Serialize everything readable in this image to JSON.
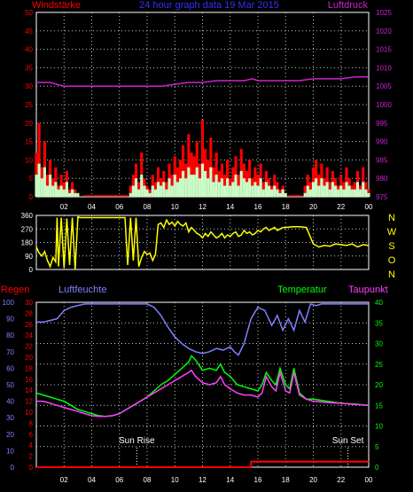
{
  "header": {
    "left_title": "Windstärke",
    "center_title": "24 hour graph data  19 Mar 2015",
    "right_title": "Luftdruck"
  },
  "bottom_header": {
    "rain_label": "Regen",
    "humidity_label": "Luftfeuchte",
    "temperature_label": "Temperatur",
    "dewpoint_label": "Taupunkt"
  },
  "compass_labels": [
    "N",
    "W",
    "S",
    "O",
    "N"
  ],
  "sun_rise_label": "Sun Rise",
  "sun_set_label": "Sun Set",
  "colors": {
    "background": "#000000",
    "grid": "#c8c8c8",
    "wind_gust": "#ff0000",
    "wind_avg": "#c8ffc8",
    "pressure": "#d020d0",
    "wind_dir": "#ffff00",
    "humidity": "#8080ff",
    "temperature": "#00ff00",
    "dewpoint": "#ff40ff",
    "rain": "#ff0000",
    "left_title": "#ff0000",
    "center_title": "#3030ff",
    "right_title": "#d020d0",
    "compass": "#ffff00"
  },
  "chart_data": [
    {
      "id": "wind_pressure",
      "type": "bar",
      "x_ticks": [
        "02",
        "04",
        "06",
        "08",
        "10",
        "12",
        "14",
        "16",
        "18",
        "20",
        "22",
        "00"
      ],
      "xlim": [
        0,
        24
      ],
      "ylim_left": [
        0,
        50
      ],
      "y_ticks_left": [
        0,
        5,
        10,
        15,
        20,
        25,
        30,
        35,
        40,
        45,
        50
      ],
      "ylim_right": [
        975,
        1025
      ],
      "y_ticks_right": [
        975,
        980,
        985,
        990,
        995,
        1000,
        1005,
        1010,
        1015,
        1020,
        1025
      ],
      "grid": true,
      "series": [
        {
          "name": "Windstärke",
          "x": [
            0.0,
            0.2,
            0.4,
            0.6,
            0.8,
            1.0,
            1.2,
            1.4,
            1.6,
            1.8,
            2.0,
            2.2,
            2.4,
            2.6,
            2.8,
            3.0,
            3.2,
            6.8,
            7.0,
            7.2,
            7.4,
            7.6,
            7.8,
            8.0,
            8.2,
            8.4,
            8.6,
            8.8,
            9.0,
            9.2,
            9.4,
            9.6,
            9.8,
            10.0,
            10.2,
            10.4,
            10.6,
            10.8,
            11.0,
            11.2,
            11.4,
            11.6,
            11.8,
            12.0,
            12.2,
            12.4,
            12.6,
            12.8,
            13.0,
            13.2,
            13.4,
            13.6,
            13.8,
            14.0,
            14.2,
            14.4,
            14.6,
            14.8,
            15.0,
            15.2,
            15.4,
            15.6,
            15.8,
            16.0,
            16.2,
            16.4,
            16.6,
            16.8,
            17.0,
            17.2,
            17.4,
            17.6,
            17.8,
            18.0,
            19.4,
            19.6,
            19.8,
            20.0,
            20.2,
            20.4,
            20.6,
            20.8,
            21.0,
            21.2,
            21.4,
            21.6,
            21.8,
            22.0,
            22.2,
            22.4,
            22.6,
            22.8,
            23.0,
            23.2,
            23.4,
            23.6,
            23.8,
            24.0
          ],
          "values": [
            12,
            20,
            8,
            15,
            6,
            10,
            5,
            8,
            3,
            6,
            4,
            7,
            2,
            4,
            2,
            1,
            0,
            3,
            6,
            9,
            4,
            12,
            5,
            3,
            2,
            6,
            4,
            8,
            5,
            7,
            4,
            9,
            6,
            11,
            8,
            10,
            14,
            9,
            17,
            12,
            11,
            15,
            9,
            21,
            13,
            10,
            16,
            8,
            12,
            7,
            9,
            6,
            10,
            5,
            8,
            11,
            6,
            13,
            9,
            7,
            10,
            5,
            8,
            6,
            9,
            4,
            7,
            5,
            3,
            6,
            4,
            2,
            3,
            1,
            3,
            6,
            4,
            8,
            10,
            6,
            9,
            5,
            8,
            4,
            7,
            5,
            3,
            6,
            4,
            8,
            5,
            3,
            4,
            7,
            3,
            8,
            4,
            2
          ]
        },
        {
          "name": "Windstärke Mittel",
          "x": [
            0.0,
            0.2,
            0.4,
            0.6,
            0.8,
            1.0,
            1.2,
            1.4,
            1.6,
            1.8,
            2.0,
            2.2,
            2.4,
            2.6,
            2.8,
            3.0,
            3.2,
            6.8,
            7.0,
            7.2,
            7.4,
            7.6,
            7.8,
            8.0,
            8.2,
            8.4,
            8.6,
            8.8,
            9.0,
            9.2,
            9.4,
            9.6,
            9.8,
            10.0,
            10.2,
            10.4,
            10.6,
            10.8,
            11.0,
            11.2,
            11.4,
            11.6,
            11.8,
            12.0,
            12.2,
            12.4,
            12.6,
            12.8,
            13.0,
            13.2,
            13.4,
            13.6,
            13.8,
            14.0,
            14.2,
            14.4,
            14.6,
            14.8,
            15.0,
            15.2,
            15.4,
            15.6,
            15.8,
            16.0,
            16.2,
            16.4,
            16.6,
            16.8,
            17.0,
            17.2,
            17.4,
            17.6,
            17.8,
            18.0,
            19.4,
            19.6,
            19.8,
            20.0,
            20.2,
            20.4,
            20.6,
            20.8,
            21.0,
            21.2,
            21.4,
            21.6,
            21.8,
            22.0,
            22.2,
            22.4,
            22.6,
            22.8,
            23.0,
            23.2,
            23.4,
            23.6,
            23.8,
            24.0
          ],
          "values": [
            6,
            9,
            5,
            8,
            3,
            6,
            3,
            4,
            2,
            3,
            2,
            4,
            1,
            2,
            1,
            1,
            0,
            1,
            3,
            5,
            2,
            6,
            3,
            2,
            1,
            3,
            2,
            4,
            3,
            4,
            2,
            5,
            3,
            6,
            4,
            5,
            7,
            5,
            8,
            6,
            6,
            8,
            5,
            9,
            7,
            5,
            8,
            4,
            6,
            4,
            5,
            3,
            5,
            3,
            4,
            6,
            3,
            7,
            5,
            4,
            5,
            3,
            4,
            3,
            5,
            2,
            4,
            3,
            2,
            3,
            2,
            1,
            2,
            1,
            1,
            3,
            2,
            4,
            5,
            3,
            5,
            3,
            4,
            2,
            4,
            3,
            2,
            3,
            2,
            4,
            3,
            2,
            2,
            4,
            2,
            4,
            2,
            1
          ]
        },
        {
          "name": "Luftdruck",
          "axis": "right",
          "x": [
            0,
            1,
            2,
            3,
            4,
            5,
            6,
            7,
            8,
            9,
            10,
            11,
            12,
            13,
            14,
            15,
            15.6,
            16,
            17,
            18,
            19,
            20,
            21,
            22,
            23,
            24
          ],
          "values": [
            1006,
            1006,
            1005,
            1005,
            1005,
            1005,
            1005,
            1005,
            1005,
            1005,
            1005.5,
            1006,
            1006,
            1006.5,
            1006.5,
            1006.5,
            1007,
            1006.5,
            1006.5,
            1006.5,
            1006.5,
            1007,
            1007,
            1007,
            1007.5,
            1007.5
          ]
        }
      ]
    },
    {
      "id": "wind_direction",
      "type": "line",
      "xlim": [
        0,
        24
      ],
      "ylim": [
        0,
        360
      ],
      "y_ticks": [
        0,
        90,
        180,
        270,
        360
      ],
      "grid": true,
      "series": [
        {
          "name": "Windrichtung",
          "x": [
            0.0,
            0.2,
            0.4,
            0.6,
            0.8,
            1.0,
            1.2,
            1.4,
            1.5,
            1.6,
            1.8,
            2.0,
            2.2,
            2.4,
            2.6,
            2.8,
            3.0,
            3.2,
            3.4,
            3.6,
            4.0,
            5.0,
            6.0,
            6.4,
            6.6,
            6.8,
            7.0,
            7.2,
            7.4,
            7.6,
            7.8,
            8.0,
            8.2,
            8.4,
            8.6,
            8.8,
            9.0,
            9.2,
            9.4,
            9.6,
            9.8,
            10.0,
            10.2,
            10.4,
            10.6,
            10.8,
            11.0,
            11.2,
            11.4,
            11.6,
            11.8,
            12.0,
            12.2,
            12.4,
            12.6,
            12.8,
            13.0,
            13.2,
            13.4,
            13.6,
            13.8,
            14.0,
            14.2,
            14.4,
            14.6,
            14.8,
            15.0,
            15.2,
            15.4,
            15.6,
            15.8,
            16.0,
            16.2,
            16.4,
            16.6,
            16.8,
            17.0,
            17.2,
            17.4,
            17.6,
            17.8,
            18.0,
            18.5,
            19.0,
            19.5,
            20.0,
            20.4,
            20.8,
            21.2,
            21.6,
            22.0,
            22.4,
            22.8,
            23.2,
            23.6,
            24.0
          ],
          "values": [
            150,
            110,
            90,
            120,
            60,
            20,
            80,
            50,
            345,
            20,
            345,
            10,
            340,
            30,
            345,
            0,
            350,
            345,
            345,
            345,
            345,
            345,
            345,
            345,
            30,
            345,
            60,
            345,
            20,
            80,
            120,
            100,
            110,
            60,
            100,
            300,
            310,
            280,
            330,
            300,
            315,
            290,
            320,
            300,
            290,
            310,
            250,
            280,
            260,
            240,
            230,
            210,
            240,
            220,
            250,
            230,
            210,
            220,
            240,
            210,
            230,
            220,
            240,
            250,
            220,
            230,
            260,
            240,
            250,
            230,
            240,
            260,
            250,
            270,
            280,
            260,
            270,
            280,
            260,
            270,
            280,
            280,
            285,
            285,
            280,
            170,
            150,
            160,
            155,
            170,
            165,
            160,
            170,
            150,
            165,
            160
          ]
        }
      ]
    },
    {
      "id": "weather_bottom",
      "type": "line",
      "x_ticks": [
        "02",
        "04",
        "06",
        "08",
        "10",
        "12",
        "14",
        "16",
        "18",
        "20",
        "22",
        "00"
      ],
      "xlim": [
        0,
        24
      ],
      "y_ticks_humidity": [
        0,
        10,
        20,
        30,
        40,
        50,
        60,
        70,
        80,
        90,
        100
      ],
      "ylim_humidity": [
        0,
        100
      ],
      "y_ticks_rain": [
        0,
        2,
        4,
        6,
        8,
        10,
        12,
        14,
        16,
        18,
        20,
        22,
        24,
        26,
        28,
        30
      ],
      "ylim_rain": [
        0,
        30
      ],
      "y_ticks_temp": [
        0,
        5,
        10,
        15,
        20,
        25,
        30,
        35,
        40
      ],
      "ylim_temp": [
        0,
        40
      ],
      "grid": true,
      "sun_rise_hour": 7.25,
      "sun_set_hour": 22.5,
      "series": [
        {
          "name": "Luftfeuchte",
          "axis": "humidity",
          "x": [
            0,
            0.5,
            1,
            1.5,
            2,
            2.5,
            3,
            3.5,
            4,
            5,
            6,
            7,
            8,
            8.5,
            9,
            9.5,
            10,
            10.5,
            11,
            11.5,
            12,
            12.5,
            13,
            13.5,
            14,
            14.3,
            14.6,
            15,
            15.5,
            16,
            16.5,
            17,
            17.4,
            17.8,
            18.2,
            18.6,
            19,
            19.4,
            19.8,
            20.2,
            20.6,
            21,
            22,
            23,
            24
          ],
          "values": [
            88,
            88,
            89,
            90,
            95,
            97,
            98,
            99,
            99,
            99,
            99,
            99,
            99,
            97,
            92,
            85,
            79,
            75,
            72,
            70,
            69,
            70,
            72,
            71,
            73,
            70,
            68,
            75,
            90,
            97,
            95,
            86,
            92,
            83,
            90,
            83,
            95,
            88,
            99,
            98,
            99,
            99,
            99,
            99,
            99
          ]
        },
        {
          "name": "Temperatur",
          "axis": "temp",
          "x": [
            0,
            0.5,
            1,
            1.5,
            2,
            2.5,
            3,
            3.5,
            4,
            4.5,
            5,
            5.5,
            6,
            6.5,
            7,
            7.5,
            8,
            8.5,
            9,
            9.5,
            10,
            10.5,
            11,
            11.2,
            11.5,
            12,
            12.5,
            13,
            13.3,
            13.6,
            14,
            14.5,
            15,
            15.5,
            16,
            16.3,
            16.6,
            17,
            17.3,
            17.6,
            18,
            18.3,
            18.6,
            19,
            19.5,
            20,
            21,
            22,
            23,
            24
          ],
          "values": [
            18,
            17.5,
            17,
            16.5,
            16,
            15,
            14,
            13.5,
            13,
            12.5,
            12.3,
            12.5,
            13,
            14,
            15,
            16,
            17,
            18.5,
            20,
            21,
            22.5,
            24,
            25.5,
            27,
            26,
            23.5,
            24,
            23.5,
            25,
            23,
            22,
            20,
            19.5,
            19,
            18.5,
            20,
            23,
            21,
            20,
            24,
            20,
            19,
            24,
            18,
            16.5,
            16.5,
            16,
            15.5,
            15.3,
            15
          ]
        },
        {
          "name": "Taupunkt",
          "axis": "temp",
          "x": [
            0,
            0.5,
            1,
            1.5,
            2,
            2.5,
            3,
            3.5,
            4,
            4.5,
            5,
            5.5,
            6,
            6.5,
            7,
            7.5,
            8,
            8.5,
            9,
            9.5,
            10,
            10.5,
            11,
            11.2,
            11.5,
            12,
            12.5,
            13,
            13.3,
            13.6,
            14,
            14.5,
            15,
            15.5,
            16,
            16.3,
            16.6,
            17,
            17.3,
            17.6,
            18,
            18.3,
            18.6,
            19,
            19.5,
            20,
            21,
            22,
            23,
            24
          ],
          "values": [
            16,
            16,
            15.5,
            15,
            14.5,
            14,
            13.5,
            13,
            12.5,
            12.3,
            12.3,
            12.5,
            13,
            14,
            15,
            16,
            17,
            18,
            19,
            20,
            21,
            22,
            23,
            23.5,
            22,
            20.5,
            20,
            20.5,
            22,
            20,
            19,
            18,
            17.5,
            17.5,
            17,
            18,
            22,
            19.5,
            18.5,
            23,
            18.5,
            18,
            23,
            17.5,
            16.5,
            16,
            15.7,
            15.5,
            15.2,
            15
          ]
        },
        {
          "name": "Regen",
          "axis": "rain",
          "x": [
            0,
            15.5,
            15.51,
            24
          ],
          "values": [
            0,
            0,
            1,
            1
          ]
        }
      ]
    }
  ]
}
